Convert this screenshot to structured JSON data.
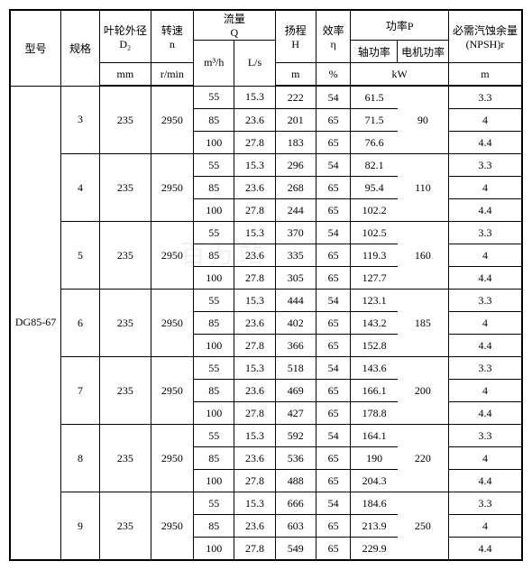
{
  "header": {
    "model": "型号",
    "spec": "规格",
    "d2_l1": "叶轮外径",
    "d2_l2": "D₂",
    "n_l1": "转速",
    "n_l2": "n",
    "q_l1": "流量",
    "q_l2": "Q",
    "h_l1": "扬程",
    "h_l2": "H",
    "eff_l1": "效率",
    "eff_l2": "η",
    "p": "功率P",
    "p_shaft": "轴功率",
    "p_motor": "电机功率",
    "npsh_l1": "必需汽蚀余量",
    "npsh_l2": "(NPSH)r"
  },
  "units": {
    "d2": "mm",
    "n": "r/min",
    "q1": "m³/h",
    "q2": "L/s",
    "h": "m",
    "eff": "%",
    "p": "kW",
    "npsh": "m"
  },
  "model": "DG85-67",
  "groups": [
    {
      "spec": "3",
      "d2": "235",
      "n": "2950",
      "motor": "90",
      "rows": [
        {
          "q1": "55",
          "q2": "15.3",
          "h": "222",
          "eff": "54",
          "shaft": "61.5",
          "npsh": "3.3"
        },
        {
          "q1": "85",
          "q2": "23.6",
          "h": "201",
          "eff": "65",
          "shaft": "71.5",
          "npsh": "4"
        },
        {
          "q1": "100",
          "q2": "27.8",
          "h": "183",
          "eff": "65",
          "shaft": "76.6",
          "npsh": "4.4"
        }
      ]
    },
    {
      "spec": "4",
      "d2": "235",
      "n": "2950",
      "motor": "110",
      "rows": [
        {
          "q1": "55",
          "q2": "15.3",
          "h": "296",
          "eff": "54",
          "shaft": "82.1",
          "npsh": "3.3"
        },
        {
          "q1": "85",
          "q2": "23.6",
          "h": "268",
          "eff": "65",
          "shaft": "95.4",
          "npsh": "4"
        },
        {
          "q1": "100",
          "q2": "27.8",
          "h": "244",
          "eff": "65",
          "shaft": "102.2",
          "npsh": "4.4"
        }
      ]
    },
    {
      "spec": "5",
      "d2": "235",
      "n": "2950",
      "motor": "160",
      "rows": [
        {
          "q1": "55",
          "q2": "15.3",
          "h": "370",
          "eff": "54",
          "shaft": "102.5",
          "npsh": "3.3"
        },
        {
          "q1": "85",
          "q2": "23.6",
          "h": "335",
          "eff": "65",
          "shaft": "119.3",
          "npsh": "4"
        },
        {
          "q1": "100",
          "q2": "27.8",
          "h": "305",
          "eff": "65",
          "shaft": "127.7",
          "npsh": "4.4"
        }
      ]
    },
    {
      "spec": "6",
      "d2": "235",
      "n": "2950",
      "motor": "185",
      "rows": [
        {
          "q1": "55",
          "q2": "15.3",
          "h": "444",
          "eff": "54",
          "shaft": "123.1",
          "npsh": "3.3"
        },
        {
          "q1": "85",
          "q2": "23.6",
          "h": "402",
          "eff": "65",
          "shaft": "143.2",
          "npsh": "4"
        },
        {
          "q1": "100",
          "q2": "27.8",
          "h": "366",
          "eff": "65",
          "shaft": "152.8",
          "npsh": "4.4"
        }
      ]
    },
    {
      "spec": "7",
      "d2": "235",
      "n": "2950",
      "motor": "200",
      "rows": [
        {
          "q1": "55",
          "q2": "15.3",
          "h": "518",
          "eff": "54",
          "shaft": "143.6",
          "npsh": "3.3"
        },
        {
          "q1": "85",
          "q2": "23.6",
          "h": "469",
          "eff": "65",
          "shaft": "166.1",
          "npsh": "4"
        },
        {
          "q1": "100",
          "q2": "27.8",
          "h": "427",
          "eff": "65",
          "shaft": "178.8",
          "npsh": "4.4"
        }
      ]
    },
    {
      "spec": "8",
      "d2": "235",
      "n": "2950",
      "motor": "220",
      "rows": [
        {
          "q1": "55",
          "q2": "15.3",
          "h": "592",
          "eff": "54",
          "shaft": "164.1",
          "npsh": "3.3"
        },
        {
          "q1": "85",
          "q2": "23.6",
          "h": "536",
          "eff": "65",
          "shaft": "190",
          "npsh": "4"
        },
        {
          "q1": "100",
          "q2": "27.8",
          "h": "488",
          "eff": "65",
          "shaft": "204.3",
          "npsh": "4.4"
        }
      ]
    },
    {
      "spec": "9",
      "d2": "235",
      "n": "2950",
      "motor": "250",
      "rows": [
        {
          "q1": "55",
          "q2": "15.3",
          "h": "666",
          "eff": "54",
          "shaft": "184.6",
          "npsh": "3.3"
        },
        {
          "q1": "85",
          "q2": "23.6",
          "h": "603",
          "eff": "65",
          "shaft": "213.9",
          "npsh": "4"
        },
        {
          "q1": "100",
          "q2": "27.8",
          "h": "549",
          "eff": "65",
          "shaft": "229.9",
          "npsh": "4.4"
        }
      ]
    }
  ],
  "style": {
    "font_size_pt": 12,
    "border_color": "#000000",
    "background_color": "#ffffff"
  }
}
